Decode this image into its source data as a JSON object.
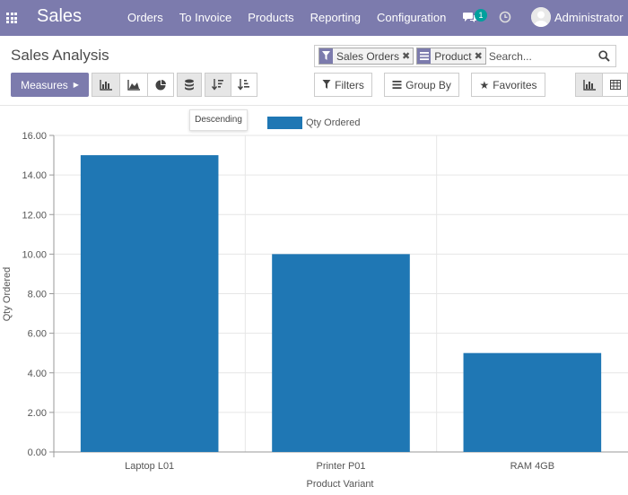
{
  "navbar": {
    "app_name": "Sales",
    "menu": [
      "Orders",
      "To Invoice",
      "Products",
      "Reporting",
      "Configuration"
    ],
    "notification_count": "1",
    "user_name": "Administrator",
    "bg_color": "#7c7bad"
  },
  "control_panel": {
    "title": "Sales Analysis",
    "measures_label": "Measures",
    "filters_label": "Filters",
    "groupby_label": "Group By",
    "favorites_label": "Favorites",
    "tooltip": "Descending",
    "search": {
      "facets": [
        {
          "icon": "filter-icon",
          "label": "Sales Orders"
        },
        {
          "icon": "groupby-icon",
          "label": "Product"
        }
      ],
      "placeholder": "Search..."
    }
  },
  "chart_data": {
    "type": "bar",
    "categories": [
      "Laptop L01",
      "Printer P01",
      "RAM 4GB"
    ],
    "series": [
      {
        "name": "Qty Ordered",
        "values": [
          15,
          10,
          5
        ],
        "color": "#1f77b4"
      }
    ],
    "xlabel": "Product Variant",
    "ylabel": "Qty Ordered",
    "ylim": [
      0,
      16
    ],
    "yticks": [
      "0.00",
      "2.00",
      "4.00",
      "6.00",
      "8.00",
      "10.00",
      "12.00",
      "14.00",
      "16.00"
    ],
    "legend_position": "top",
    "grid": true
  }
}
